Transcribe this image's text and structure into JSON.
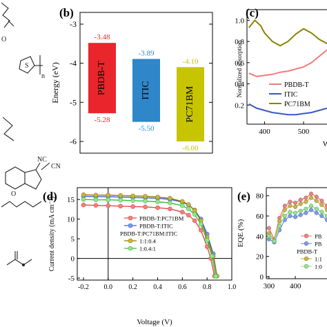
{
  "panels": {
    "b": "(b)",
    "c": "(c)",
    "d": "(d)",
    "e": "(e)"
  },
  "chart_data": [
    {
      "type": "bar",
      "panel": "(b)",
      "ylabel": "Energy (eV)",
      "ylim": [
        -6.3,
        -2.7
      ],
      "yticks": [
        "-3",
        "-4",
        "-5",
        "-6"
      ],
      "grid": false,
      "series": [
        {
          "name": "PBDB-T",
          "top": -3.48,
          "bottom": -5.28,
          "top_label": "-3.48",
          "bottom_label": "-5.28",
          "color": "#e8262b"
        },
        {
          "name": "ITIC",
          "top": -3.89,
          "bottom": -5.5,
          "top_label": "-3.89",
          "bottom_label": "-5.50",
          "color": "#2f86c8"
        },
        {
          "name": "PC71BM",
          "top": -4.1,
          "bottom": -6.0,
          "top_label": "-4.10",
          "bottom_label": "-6.00",
          "color": "#c7c400"
        }
      ]
    },
    {
      "type": "line",
      "panel": "(c)",
      "ylabel": "Normalized absorption",
      "xlabel": "W",
      "xlim": [
        355,
        560
      ],
      "ylim": [
        0.02,
        1.1
      ],
      "xticks": [
        "400",
        "500"
      ],
      "yticks": [
        "0.2",
        "0.4",
        "0.6",
        "0.8",
        "1.0"
      ],
      "legend": [
        "PBDB-T",
        "ITIC",
        "PC71BM"
      ],
      "series": [
        {
          "name": "PBDB-T",
          "color": "#f07b7b",
          "x": [
            360,
            380,
            400,
            420,
            440,
            460,
            480,
            500,
            520,
            540,
            560
          ],
          "y": [
            0.5,
            0.47,
            0.48,
            0.49,
            0.51,
            0.52,
            0.54,
            0.56,
            0.6,
            0.66,
            0.72
          ]
        },
        {
          "name": "ITIC",
          "color": "#3a55c8",
          "x": [
            360,
            380,
            400,
            420,
            440,
            460,
            480,
            500,
            520,
            540,
            560
          ],
          "y": [
            0.21,
            0.17,
            0.15,
            0.13,
            0.12,
            0.11,
            0.11,
            0.12,
            0.13,
            0.15,
            0.17
          ]
        },
        {
          "name": "PC71BM",
          "color": "#8a8200",
          "x": [
            360,
            375,
            390,
            400,
            420,
            440,
            460,
            480,
            500,
            520,
            540,
            560
          ],
          "y": [
            0.93,
            1.0,
            0.95,
            0.88,
            0.8,
            0.76,
            0.8,
            0.87,
            0.92,
            0.88,
            0.82,
            0.78
          ]
        }
      ]
    },
    {
      "type": "line",
      "panel": "(d)",
      "xlabel": "Voltage (V)",
      "ylabel": "Current density (mA cm⁻²)",
      "xlim": [
        -0.25,
        1.0
      ],
      "ylim": [
        -5.5,
        18
      ],
      "xticks": [
        "-0.2",
        "0.0",
        "0.2",
        "0.4",
        "0.6",
        "0.8",
        "1.0"
      ],
      "yticks": [
        "-5",
        "0",
        "5",
        "10",
        "15"
      ],
      "legend": [
        "PBDB-T:PC71BM",
        "PBDB-T:ITIC",
        "PBDB-T:PC71BM:ITIC",
        "1:1:0.4",
        "1:0.4:1"
      ],
      "series": [
        {
          "name": "PBDB-T:PC71BM",
          "color": "#f08080",
          "edge": "#e04848",
          "x": [
            -0.2,
            -0.1,
            0.0,
            0.1,
            0.2,
            0.3,
            0.4,
            0.5,
            0.6,
            0.65,
            0.7,
            0.75,
            0.8,
            0.83,
            0.86
          ],
          "y": [
            13.6,
            13.5,
            13.4,
            13.3,
            13.2,
            13.1,
            12.9,
            12.6,
            11.8,
            11.0,
            9.6,
            7.2,
            3.0,
            0.0,
            -4.5
          ]
        },
        {
          "name": "PBDB-T:ITIC",
          "color": "#7a9af0",
          "edge": "#3f62d0",
          "x": [
            -0.2,
            -0.1,
            0.0,
            0.1,
            0.2,
            0.3,
            0.4,
            0.5,
            0.6,
            0.65,
            0.7,
            0.75,
            0.8,
            0.85,
            0.88
          ],
          "y": [
            15.8,
            15.7,
            15.7,
            15.6,
            15.5,
            15.4,
            15.3,
            15.0,
            14.3,
            13.6,
            12.3,
            10.0,
            6.2,
            1.2,
            -4.5
          ]
        },
        {
          "name": "1:1:0.4",
          "color": "#c9b63a",
          "edge": "#8f7e00",
          "x": [
            -0.2,
            -0.1,
            0.0,
            0.1,
            0.2,
            0.3,
            0.4,
            0.5,
            0.6,
            0.65,
            0.7,
            0.75,
            0.8,
            0.85,
            0.88
          ],
          "y": [
            16.2,
            16.1,
            16.1,
            16.0,
            15.9,
            15.8,
            15.6,
            15.3,
            14.5,
            13.7,
            12.2,
            9.6,
            5.4,
            0.6,
            -4.5
          ]
        },
        {
          "name": "1:0.4:1",
          "color": "#8ee88e",
          "edge": "#3fb83f",
          "x": [
            -0.2,
            -0.1,
            0.0,
            0.1,
            0.2,
            0.3,
            0.4,
            0.5,
            0.6,
            0.65,
            0.7,
            0.75,
            0.8,
            0.84,
            0.87
          ],
          "y": [
            15.0,
            14.9,
            14.9,
            14.8,
            14.7,
            14.6,
            14.4,
            14.1,
            13.4,
            12.6,
            11.2,
            8.7,
            4.6,
            0.6,
            -4.5
          ]
        }
      ]
    },
    {
      "type": "line",
      "panel": "(e)",
      "ylabel": "EQE (%)",
      "xlim": [
        290,
        520
      ],
      "ylim": [
        -2,
        88
      ],
      "xticks": [
        "300",
        "400"
      ],
      "yticks": [
        "0",
        "20",
        "40",
        "60",
        "80"
      ],
      "legend": [
        "PB",
        "PB",
        "PBDB-T",
        "1:1",
        "1:0"
      ],
      "series": [
        {
          "name": "PB",
          "color": "#f08080",
          "x": [
            300,
            320,
            340,
            360,
            380,
            400,
            420,
            440,
            460,
            480,
            500,
            520
          ],
          "y": [
            48,
            37,
            58,
            70,
            74,
            73,
            76,
            78,
            82,
            79,
            75,
            70
          ]
        },
        {
          "name": "PB",
          "color": "#7a9af0",
          "x": [
            300,
            320,
            340,
            360,
            380,
            400,
            420,
            440,
            460,
            480,
            500,
            520
          ],
          "y": [
            37,
            34,
            46,
            56,
            60,
            59,
            61,
            63,
            66,
            63,
            60,
            56
          ]
        },
        {
          "name": "1:1",
          "color": "#c9b63a",
          "x": [
            300,
            320,
            340,
            360,
            380,
            400,
            420,
            440,
            460,
            480,
            500,
            520
          ],
          "y": [
            43,
            36,
            55,
            66,
            70,
            69,
            72,
            74,
            78,
            75,
            71,
            66
          ]
        },
        {
          "name": "1:0",
          "color": "#8ee88e",
          "x": [
            300,
            320,
            340,
            360,
            380,
            400,
            420,
            440,
            460,
            480,
            500,
            520
          ],
          "y": [
            40,
            35,
            50,
            60,
            64,
            63,
            65,
            67,
            70,
            67,
            64,
            60
          ]
        }
      ]
    }
  ]
}
